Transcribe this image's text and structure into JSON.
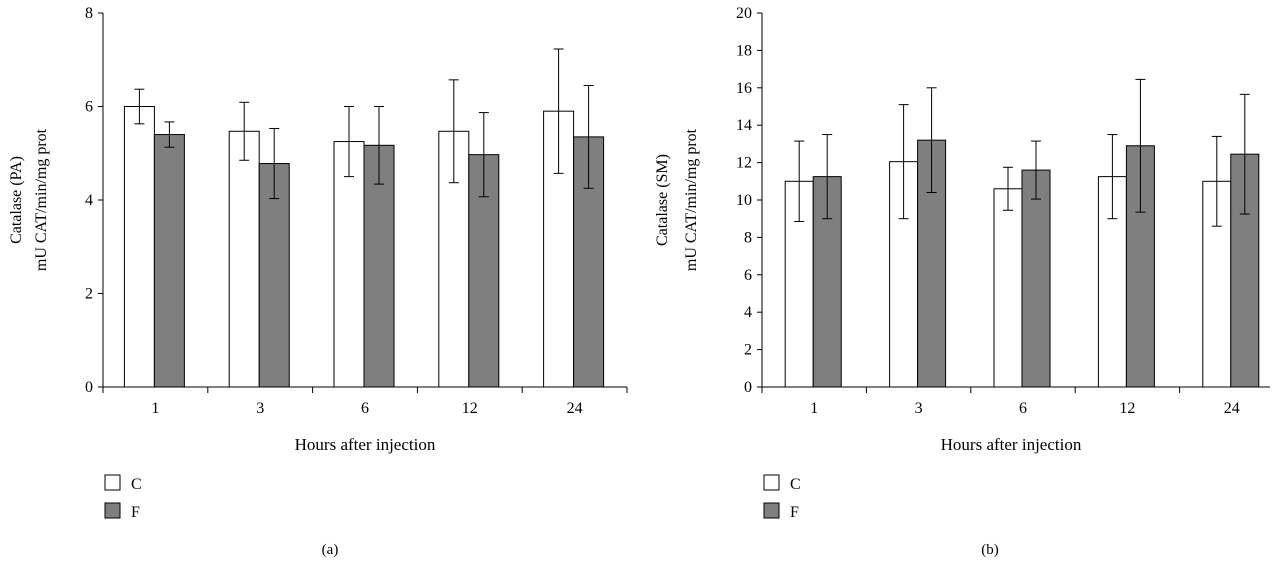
{
  "chart_data": [
    {
      "type": "bar",
      "panel_label": "(a)",
      "categories": [
        "1",
        "3",
        "6",
        "12",
        "24"
      ],
      "series": [
        {
          "name": "C",
          "values": [
            6.0,
            5.47,
            5.25,
            5.47,
            5.9
          ],
          "errors": [
            0.37,
            0.62,
            0.75,
            1.1,
            1.33
          ],
          "color": "#ffffff"
        },
        {
          "name": "F",
          "values": [
            5.4,
            4.78,
            5.17,
            4.97,
            5.35
          ],
          "errors": [
            0.27,
            0.75,
            0.83,
            0.9,
            1.1
          ],
          "color": "#7f7f7f"
        }
      ],
      "xlabel": "Hours after injection",
      "ylabel_lines": [
        "Catalase (PA)",
        "mU CAT/min/mg prot"
      ],
      "ylim": [
        0,
        8
      ],
      "yticks": [
        "0",
        "2",
        "4",
        "6",
        "8"
      ],
      "grid": false,
      "legend_position": "bottom-left"
    },
    {
      "type": "bar",
      "panel_label": "(b)",
      "categories": [
        "1",
        "3",
        "6",
        "12",
        "24"
      ],
      "series": [
        {
          "name": "C",
          "values": [
            11.0,
            12.05,
            10.6,
            11.25,
            11.0
          ],
          "errors": [
            2.15,
            3.05,
            1.15,
            2.25,
            2.4
          ],
          "color": "#ffffff"
        },
        {
          "name": "F",
          "values": [
            11.25,
            13.2,
            11.6,
            12.9,
            12.45
          ],
          "errors": [
            2.25,
            2.8,
            1.55,
            3.55,
            3.2
          ],
          "color": "#7f7f7f"
        }
      ],
      "xlabel": "Hours after injection",
      "ylabel_lines": [
        "Catalase (SM)",
        "mU CAT/min/mg prot"
      ],
      "ylim": [
        0,
        20
      ],
      "yticks": [
        "0",
        "2",
        "4",
        "6",
        "8",
        "10",
        "12",
        "14",
        "16",
        "18",
        "20"
      ],
      "grid": false,
      "legend_position": "bottom-left"
    }
  ]
}
